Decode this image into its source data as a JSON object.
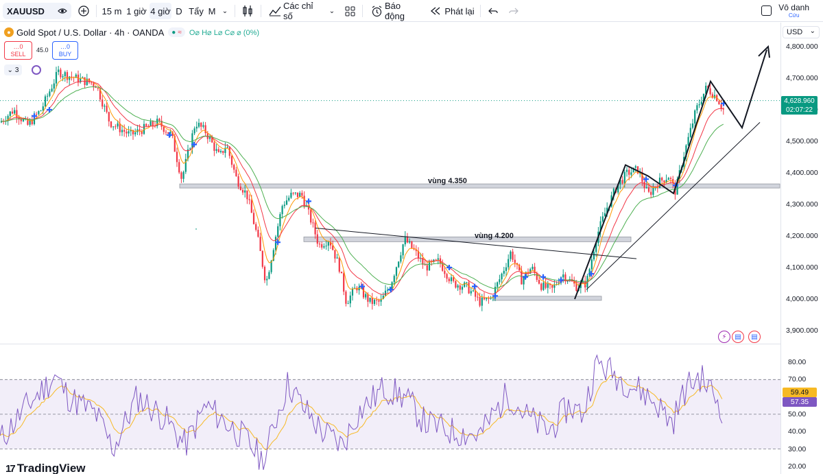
{
  "toolbar": {
    "symbol": "XAUUSD",
    "timeframes": [
      "15 m",
      "1 giờ",
      "4 giờ",
      "D",
      "Tẩy",
      "M"
    ],
    "active_timeframe": "4 giờ",
    "indicators_label": "Các chỉ số",
    "alerts_label": "Báo động",
    "replay_label": "Phát lại",
    "user_name": "Vô danh",
    "user_sub": "Cứu"
  },
  "legend": {
    "title": "Gold Spot / U.S. Dollar · 4h · OANDA",
    "ohlc": "O⌀ H⌀ L⌀ C⌀ ⌀ (0%)"
  },
  "trade": {
    "sell_price": "…0",
    "sell_label": "SELL",
    "spread": "45.0",
    "buy_price": "…0",
    "buy_label": "BUY",
    "collapse_count": "3"
  },
  "price_axis": {
    "currency": "USD",
    "ticks": [
      "4,800.000",
      "4,700.000",
      "4,600.000",
      "4,500.000",
      "4,400.000",
      "4,300.000",
      "4,200.000",
      "4,100.000",
      "4,000.000",
      "3,900.000"
    ],
    "last_price": "4,628.960",
    "countdown": "02:07:22"
  },
  "zones": {
    "upper": "vùng 4.350",
    "lower": "vùng 4.200"
  },
  "rsi": {
    "ticks": [
      "80.00",
      "70.00",
      "60.00",
      "50.00",
      "40.00",
      "30.00",
      "20.00"
    ],
    "rsi_value": "59.49",
    "ma_value": "57.35"
  },
  "brand": "TradingView",
  "colors": {
    "bull": "#089981",
    "bear": "#f23645",
    "rsi_line": "#7e57c2",
    "rsi_ma": "#f7b924",
    "ema_fast": "#ff9800",
    "ema_slow": "#4caf50"
  }
}
